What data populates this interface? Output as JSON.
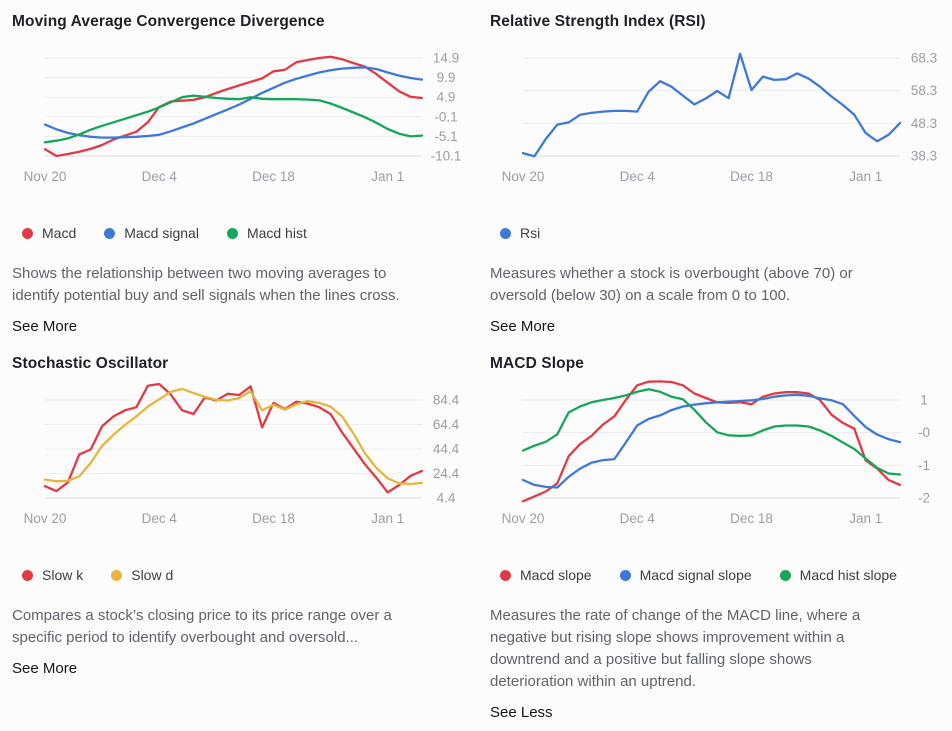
{
  "page": {
    "background": "#fcfcfc"
  },
  "colors": {
    "red": "#e23a44",
    "blue": "#3e79d8",
    "green": "#16a55a",
    "yellow": "#e6b53c"
  },
  "chart_data": [
    {
      "type": "line",
      "title": "Moving Average Convergence Divergence",
      "y_ticks": [
        "14.9",
        "9.9",
        "4.9",
        "-0.1",
        "-5.1",
        "-10.1"
      ],
      "y_max": 14.9,
      "y_min": -10.1,
      "x_ticks": [
        {
          "label": "Nov 20",
          "index": 0
        },
        {
          "label": "Dec 4",
          "index": 10
        },
        {
          "label": "Dec 18",
          "index": 20
        },
        {
          "label": "Jan 1",
          "index": 30
        }
      ],
      "series": [
        {
          "name": "Macd",
          "color": "red",
          "values": [
            -8.4,
            -10.1,
            -9.6,
            -9.0,
            -8.3,
            -7.3,
            -5.9,
            -4.9,
            -3.9,
            -1.5,
            2.4,
            3.8,
            4.0,
            4.2,
            4.9,
            6.0,
            7.0,
            7.9,
            8.8,
            9.7,
            11.5,
            11.9,
            13.8,
            14.4,
            14.9,
            15.2,
            14.6,
            13.6,
            12.7,
            10.8,
            8.6,
            6.4,
            5.0,
            4.7
          ]
        },
        {
          "name": "Macd signal",
          "color": "blue",
          "values": [
            -2.1,
            -3.3,
            -4.2,
            -4.8,
            -5.2,
            -5.4,
            -5.4,
            -5.3,
            -5.2,
            -5.0,
            -4.7,
            -3.8,
            -2.8,
            -1.8,
            -0.6,
            0.6,
            1.8,
            3.0,
            4.5,
            6.0,
            7.3,
            8.6,
            9.6,
            10.4,
            11.2,
            11.8,
            12.2,
            12.4,
            12.5,
            12.1,
            11.2,
            10.4,
            9.8,
            9.4
          ]
        },
        {
          "name": "Macd hist",
          "color": "green",
          "values": [
            -6.6,
            -6.2,
            -5.6,
            -4.6,
            -3.4,
            -2.4,
            -1.5,
            -0.6,
            0.3,
            1.2,
            2.3,
            3.6,
            4.9,
            5.3,
            5.0,
            4.7,
            4.5,
            4.4,
            4.9,
            4.5,
            4.4,
            4.4,
            4.4,
            4.3,
            4.1,
            3.3,
            2.2,
            1.0,
            -0.2,
            -1.6,
            -3.2,
            -4.4,
            -5.1,
            -4.9
          ]
        }
      ],
      "legend": [
        {
          "label": "Macd",
          "color": "red"
        },
        {
          "label": "Macd signal",
          "color": "blue"
        },
        {
          "label": "Macd hist",
          "color": "green"
        }
      ],
      "description": "Shows the relationship between two moving averages to\nidentify potential buy and sell signals when the lines cross.",
      "link_label": "See More"
    },
    {
      "type": "line",
      "title": "Relative Strength Index (RSI)",
      "y_ticks": [
        "68.3",
        "58.3",
        "48.3",
        "38.3"
      ],
      "y_max": 68.3,
      "y_min": 38.3,
      "x_ticks": [
        {
          "label": "Nov 20",
          "index": 0
        },
        {
          "label": "Dec 4",
          "index": 10
        },
        {
          "label": "Dec 18",
          "index": 20
        },
        {
          "label": "Jan 1",
          "index": 30
        }
      ],
      "series": [
        {
          "name": "Rsi",
          "color": "blue",
          "values": [
            39.2,
            38.2,
            43.5,
            47.9,
            48.6,
            50.9,
            51.5,
            51.9,
            52.1,
            52.1,
            51.9,
            58.0,
            61.2,
            59.5,
            56.8,
            54.1,
            55.9,
            58.2,
            56.0,
            69.6,
            58.5,
            62.6,
            61.6,
            61.8,
            63.6,
            62.0,
            59.5,
            56.5,
            53.9,
            50.9,
            45.3,
            42.8,
            44.8,
            48.4
          ]
        }
      ],
      "legend": [
        {
          "label": "Rsi",
          "color": "blue"
        }
      ],
      "description": "Measures whether a stock is overbought (above 70) or\noversold (below 30) on a scale from 0 to 100.",
      "link_label": "See More"
    },
    {
      "type": "line",
      "title": "Stochastic Oscillator",
      "y_ticks": [
        "84.4",
        "64.4",
        "44.4",
        "24.4",
        "4.4"
      ],
      "y_max": 84.4,
      "y_min": 4.4,
      "x_ticks": [
        {
          "label": "Nov 20",
          "index": 0
        },
        {
          "label": "Dec 4",
          "index": 10
        },
        {
          "label": "Dec 18",
          "index": 20
        },
        {
          "label": "Jan 1",
          "index": 30
        }
      ],
      "series": [
        {
          "name": "Slow k",
          "color": "red",
          "values": [
            14,
            10,
            17,
            40,
            44,
            63,
            71,
            76,
            78.5,
            96,
            97.5,
            89,
            76,
            73,
            86.5,
            84,
            89.5,
            88.5,
            95.5,
            62,
            82,
            77,
            83,
            81.5,
            78.5,
            73,
            58,
            45,
            32,
            21,
            9,
            15,
            22.5,
            26.5
          ]
        },
        {
          "name": "Slow d",
          "color": "yellow",
          "values": [
            19.5,
            18,
            18.5,
            22,
            33,
            47,
            56,
            64,
            71,
            79,
            85,
            91,
            93.5,
            90,
            87,
            84.5,
            84,
            86,
            91.5,
            76,
            80.5,
            76.5,
            81,
            83.5,
            82,
            79,
            71,
            57,
            41,
            29,
            20.5,
            16.3,
            15.8,
            16.7
          ]
        }
      ],
      "legend": [
        {
          "label": "Slow k",
          "color": "red"
        },
        {
          "label": "Slow d",
          "color": "yellow"
        }
      ],
      "description": "Compares a stock’s closing price to its price range over a\nspecific period to identify overbought and oversold...",
      "link_label": "See More"
    },
    {
      "type": "line",
      "title": "MACD Slope",
      "y_ticks": [
        "1",
        "-0",
        "-1",
        "-2"
      ],
      "y_max": 1,
      "y_min": -2,
      "x_ticks": [
        {
          "label": "Nov 20",
          "index": 0
        },
        {
          "label": "Dec 4",
          "index": 10
        },
        {
          "label": "Dec 18",
          "index": 20
        },
        {
          "label": "Jan 1",
          "index": 30
        }
      ],
      "series": [
        {
          "name": "Macd slope",
          "color": "red",
          "values": [
            -2.1,
            -1.95,
            -1.8,
            -1.55,
            -0.72,
            -0.35,
            -0.1,
            0.25,
            0.5,
            1.0,
            1.45,
            1.56,
            1.57,
            1.55,
            1.45,
            1.2,
            1.06,
            0.93,
            0.91,
            0.93,
            0.87,
            1.1,
            1.2,
            1.24,
            1.24,
            1.2,
            1.0,
            0.55,
            0.3,
            0.12,
            -0.85,
            -1.1,
            -1.45,
            -1.6
          ]
        },
        {
          "name": "Macd signal slope",
          "color": "blue",
          "values": [
            -1.45,
            -1.6,
            -1.66,
            -1.68,
            -1.35,
            -1.1,
            -0.92,
            -0.84,
            -0.81,
            -0.3,
            0.22,
            0.42,
            0.53,
            0.69,
            0.8,
            0.86,
            0.9,
            0.93,
            0.95,
            0.97,
            0.99,
            1.03,
            1.1,
            1.14,
            1.16,
            1.13,
            1.05,
            0.99,
            0.87,
            0.51,
            0.17,
            -0.06,
            -0.2,
            -0.29
          ]
        },
        {
          "name": "Macd hist slope",
          "color": "green",
          "values": [
            -0.55,
            -0.4,
            -0.28,
            -0.05,
            0.62,
            0.8,
            0.93,
            1.0,
            1.06,
            1.14,
            1.25,
            1.33,
            1.25,
            1.1,
            1.02,
            0.7,
            0.32,
            0.01,
            -0.08,
            -0.1,
            -0.08,
            0.07,
            0.19,
            0.22,
            0.22,
            0.19,
            0.07,
            -0.1,
            -0.3,
            -0.5,
            -0.79,
            -1.08,
            -1.25,
            -1.28
          ]
        }
      ],
      "legend": [
        {
          "label": "Macd slope",
          "color": "red"
        },
        {
          "label": "Macd signal slope",
          "color": "blue"
        },
        {
          "label": "Macd hist slope",
          "color": "green"
        }
      ],
      "description": "Measures the rate of change of the MACD line, where a\nnegative but rising slope shows improvement within a\ndowntrend and a positive but falling slope shows\ndeterioration within an uptrend.",
      "link_label": "See Less"
    }
  ]
}
